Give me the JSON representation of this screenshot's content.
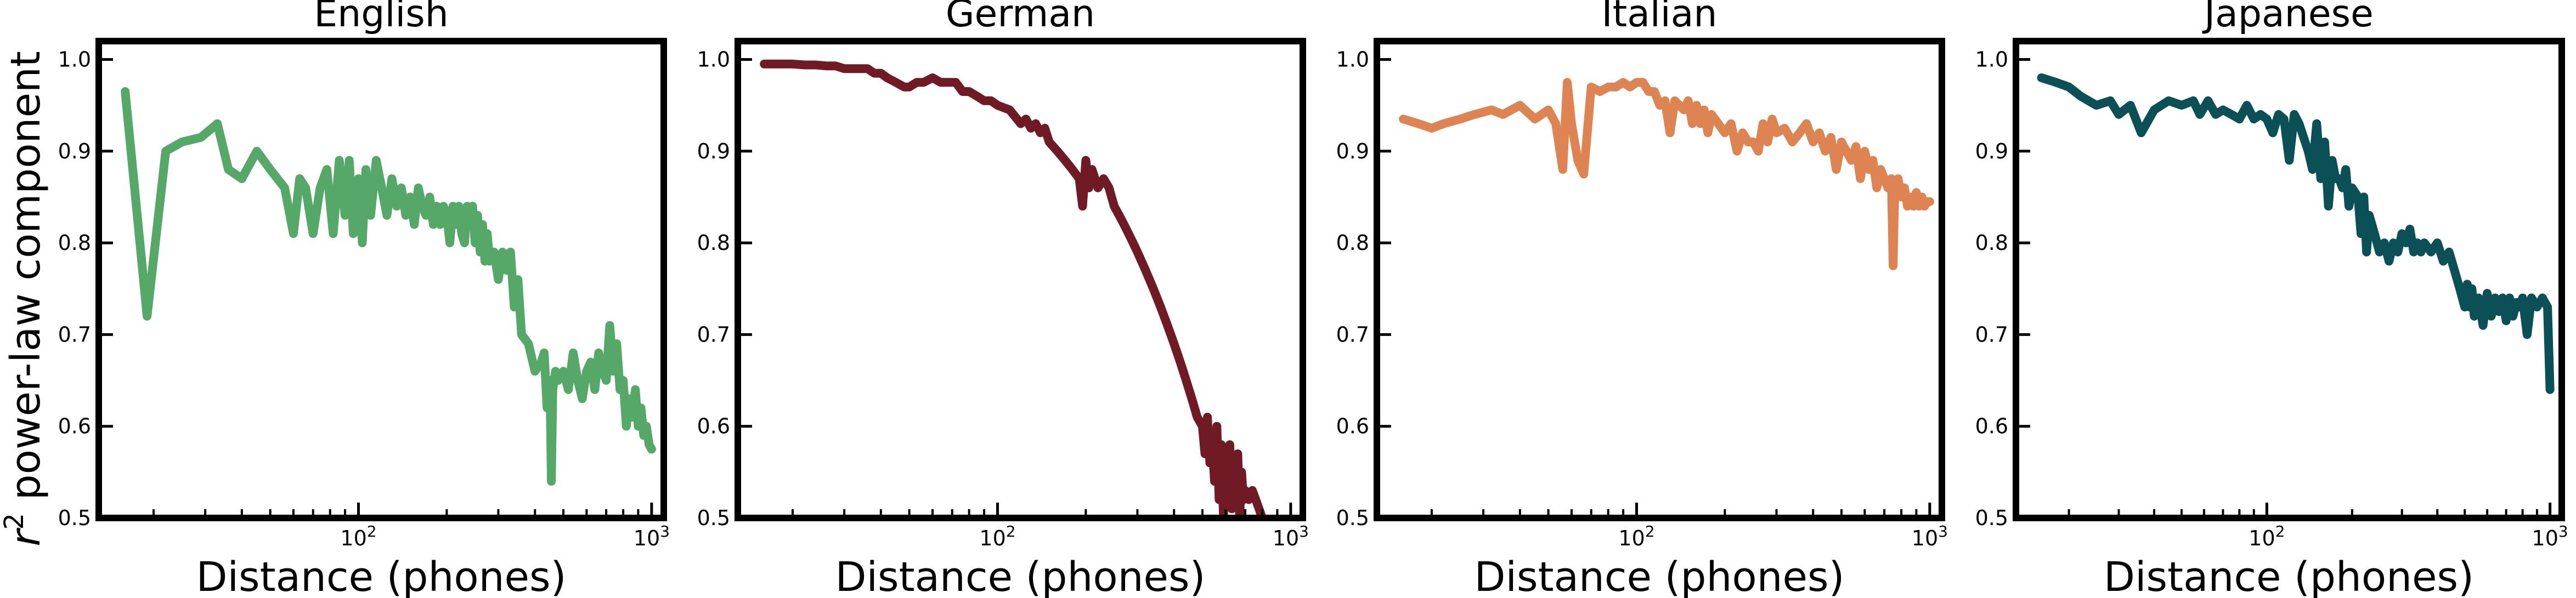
{
  "figure": {
    "ylabel_var": "r",
    "ylabel_exp": "2",
    "ylabel_rest": " power-law component"
  },
  "chart_data": [
    {
      "type": "line",
      "title": "English",
      "xlabel": "Distance (phones)",
      "xscale": "log",
      "xlim": [
        13,
        1100
      ],
      "ylim": [
        0.5,
        1.02
      ],
      "yticks": [
        "0.5",
        "0.6",
        "0.7",
        "0.8",
        "0.9",
        "1.0"
      ],
      "xticks": [
        {
          "base": "10",
          "exp": "2",
          "value": 100
        },
        {
          "base": "10",
          "exp": "3",
          "value": 1000
        }
      ],
      "color": "#55a868",
      "series": [
        {
          "x": [
            16,
            19,
            22,
            25,
            29,
            33,
            36,
            40,
            45,
            50,
            56,
            60,
            63,
            66,
            70,
            74,
            78,
            82,
            86,
            90,
            93,
            96,
            100,
            103,
            106,
            110,
            115,
            120,
            125,
            130,
            135,
            140,
            145,
            150,
            155,
            160,
            165,
            170,
            175,
            180,
            185,
            190,
            195,
            200,
            205,
            210,
            215,
            220,
            225,
            230,
            235,
            240,
            245,
            250,
            255,
            260,
            265,
            270,
            275,
            280,
            290,
            300,
            310,
            320,
            330,
            340,
            350,
            360,
            380,
            400,
            420,
            430,
            440,
            450,
            455,
            460,
            470,
            480,
            500,
            520,
            540,
            560,
            580,
            600,
            620,
            640,
            660,
            680,
            700,
            720,
            740,
            760,
            780,
            800,
            820,
            840,
            860,
            880,
            900,
            920,
            940,
            960,
            980,
            1000
          ],
          "y": [
            0.965,
            0.72,
            0.9,
            0.91,
            0.915,
            0.93,
            0.88,
            0.87,
            0.9,
            0.88,
            0.86,
            0.81,
            0.87,
            0.86,
            0.81,
            0.86,
            0.88,
            0.81,
            0.89,
            0.83,
            0.89,
            0.81,
            0.87,
            0.8,
            0.88,
            0.83,
            0.89,
            0.86,
            0.83,
            0.87,
            0.84,
            0.86,
            0.83,
            0.85,
            0.82,
            0.86,
            0.84,
            0.83,
            0.85,
            0.82,
            0.84,
            0.82,
            0.84,
            0.83,
            0.8,
            0.84,
            0.82,
            0.84,
            0.81,
            0.8,
            0.84,
            0.82,
            0.84,
            0.8,
            0.83,
            0.79,
            0.82,
            0.78,
            0.81,
            0.78,
            0.79,
            0.76,
            0.79,
            0.77,
            0.79,
            0.73,
            0.76,
            0.7,
            0.69,
            0.66,
            0.67,
            0.68,
            0.62,
            0.65,
            0.54,
            0.64,
            0.66,
            0.65,
            0.66,
            0.64,
            0.68,
            0.65,
            0.63,
            0.66,
            0.67,
            0.64,
            0.68,
            0.66,
            0.65,
            0.71,
            0.66,
            0.69,
            0.64,
            0.65,
            0.6,
            0.63,
            0.61,
            0.64,
            0.6,
            0.62,
            0.59,
            0.6,
            0.58,
            0.575
          ]
        }
      ]
    },
    {
      "type": "line",
      "title": "German",
      "xlabel": "Distance (phones)",
      "xscale": "log",
      "xlim": [
        13,
        1100
      ],
      "ylim": [
        0.5,
        1.02
      ],
      "yticks": [
        "0.5",
        "0.6",
        "0.7",
        "0.8",
        "0.9",
        "1.0"
      ],
      "xticks": [
        {
          "base": "10",
          "exp": "2",
          "value": 100
        },
        {
          "base": "10",
          "exp": "3",
          "value": 1000
        }
      ],
      "color": "#6f1a24",
      "series": [
        {
          "x": [
            16,
            18,
            20,
            22,
            24,
            26,
            28,
            30,
            32,
            34,
            36,
            38,
            40,
            42,
            45,
            48,
            50,
            53,
            56,
            60,
            64,
            68,
            72,
            76,
            80,
            85,
            90,
            95,
            100,
            110,
            120,
            125,
            130,
            135,
            140,
            145,
            150,
            160,
            170,
            180,
            190,
            195,
            200,
            205,
            210,
            220,
            230,
            240,
            250,
            260,
            270,
            280,
            290,
            300,
            320,
            340,
            360,
            380,
            400,
            420,
            440,
            460,
            480,
            500,
            510,
            520,
            530,
            540,
            550,
            560,
            570,
            580,
            590,
            600,
            610,
            620,
            630,
            640,
            650,
            660,
            670,
            680,
            690,
            700,
            720,
            740,
            760,
            780,
            800
          ],
          "y": [
            0.995,
            0.995,
            0.995,
            0.994,
            0.994,
            0.993,
            0.993,
            0.99,
            0.99,
            0.99,
            0.99,
            0.985,
            0.985,
            0.98,
            0.975,
            0.97,
            0.97,
            0.975,
            0.975,
            0.98,
            0.975,
            0.975,
            0.975,
            0.965,
            0.965,
            0.96,
            0.955,
            0.955,
            0.95,
            0.945,
            0.93,
            0.935,
            0.925,
            0.93,
            0.92,
            0.925,
            0.91,
            0.9,
            0.89,
            0.88,
            0.87,
            0.84,
            0.89,
            0.86,
            0.88,
            0.86,
            0.87,
            0.86,
            0.84,
            0.83,
            0.82,
            0.81,
            0.8,
            0.79,
            0.77,
            0.75,
            0.73,
            0.71,
            0.69,
            0.67,
            0.65,
            0.63,
            0.61,
            0.6,
            0.57,
            0.61,
            0.56,
            0.58,
            0.54,
            0.6,
            0.52,
            0.58,
            0.5,
            0.57,
            0.53,
            0.58,
            0.51,
            0.56,
            0.53,
            0.57,
            0.5,
            0.55,
            0.52,
            0.53,
            0.52,
            0.53,
            0.52,
            0.51,
            0.5
          ]
        }
      ]
    },
    {
      "type": "line",
      "title": "Italian",
      "xlabel": "Distance (phones)",
      "xscale": "log",
      "xlim": [
        13,
        1100
      ],
      "ylim": [
        0.5,
        1.02
      ],
      "yticks": [
        "0.5",
        "0.6",
        "0.7",
        "0.8",
        "0.9",
        "1.0"
      ],
      "xticks": [
        {
          "base": "10",
          "exp": "2",
          "value": 100
        },
        {
          "base": "10",
          "exp": "3",
          "value": 1000
        }
      ],
      "color": "#dd8452",
      "series": [
        {
          "x": [
            16,
            18,
            20,
            22,
            25,
            28,
            32,
            35,
            40,
            45,
            50,
            53,
            56,
            58,
            60,
            63,
            66,
            70,
            75,
            80,
            85,
            90,
            95,
            100,
            105,
            110,
            115,
            120,
            125,
            130,
            135,
            140,
            145,
            150,
            155,
            160,
            165,
            170,
            175,
            180,
            190,
            200,
            210,
            220,
            230,
            240,
            250,
            260,
            270,
            280,
            290,
            300,
            320,
            340,
            360,
            380,
            400,
            420,
            440,
            460,
            480,
            500,
            520,
            540,
            560,
            580,
            600,
            620,
            640,
            660,
            680,
            700,
            720,
            740,
            750,
            760,
            780,
            800,
            820,
            840,
            860,
            880,
            900,
            920,
            940,
            960,
            980,
            1000
          ],
          "y": [
            0.935,
            0.93,
            0.925,
            0.93,
            0.935,
            0.94,
            0.945,
            0.94,
            0.95,
            0.935,
            0.945,
            0.93,
            0.88,
            0.975,
            0.93,
            0.89,
            0.875,
            0.97,
            0.965,
            0.97,
            0.97,
            0.975,
            0.97,
            0.975,
            0.975,
            0.965,
            0.965,
            0.95,
            0.955,
            0.92,
            0.955,
            0.95,
            0.945,
            0.955,
            0.93,
            0.95,
            0.93,
            0.945,
            0.92,
            0.94,
            0.93,
            0.92,
            0.93,
            0.9,
            0.92,
            0.91,
            0.91,
            0.9,
            0.93,
            0.91,
            0.935,
            0.92,
            0.925,
            0.91,
            0.92,
            0.93,
            0.91,
            0.92,
            0.9,
            0.915,
            0.88,
            0.91,
            0.9,
            0.89,
            0.905,
            0.87,
            0.9,
            0.88,
            0.89,
            0.86,
            0.88,
            0.87,
            0.86,
            0.87,
            0.775,
            0.86,
            0.87,
            0.85,
            0.86,
            0.84,
            0.85,
            0.84,
            0.855,
            0.84,
            0.85,
            0.84,
            0.845,
            0.845
          ]
        }
      ]
    },
    {
      "type": "line",
      "title": "Japanese",
      "xlabel": "Distance (phones)",
      "xscale": "log",
      "xlim": [
        13,
        1100
      ],
      "ylim": [
        0.5,
        1.02
      ],
      "yticks": [
        "0.5",
        "0.6",
        "0.7",
        "0.8",
        "0.9",
        "1.0"
      ],
      "xticks": [
        {
          "base": "10",
          "exp": "2",
          "value": 100
        },
        {
          "base": "10",
          "exp": "3",
          "value": 1000
        }
      ],
      "color": "#0b4f57",
      "series": [
        {
          "x": [
            16,
            18,
            20,
            22,
            25,
            28,
            30,
            33,
            36,
            40,
            45,
            50,
            55,
            58,
            62,
            66,
            70,
            75,
            80,
            85,
            90,
            95,
            100,
            105,
            110,
            115,
            120,
            125,
            130,
            140,
            145,
            150,
            155,
            160,
            165,
            170,
            175,
            180,
            185,
            190,
            195,
            200,
            210,
            215,
            220,
            225,
            230,
            240,
            250,
            260,
            270,
            280,
            290,
            300,
            310,
            320,
            330,
            340,
            350,
            360,
            380,
            400,
            420,
            440,
            460,
            480,
            500,
            510,
            520,
            530,
            540,
            560,
            580,
            600,
            620,
            640,
            660,
            680,
            700,
            720,
            740,
            760,
            780,
            800,
            830,
            860,
            900,
            940,
            980,
            1000
          ],
          "y": [
            0.98,
            0.975,
            0.97,
            0.96,
            0.95,
            0.955,
            0.94,
            0.95,
            0.92,
            0.945,
            0.955,
            0.95,
            0.955,
            0.94,
            0.955,
            0.94,
            0.945,
            0.94,
            0.935,
            0.95,
            0.935,
            0.94,
            0.935,
            0.92,
            0.94,
            0.935,
            0.89,
            0.94,
            0.93,
            0.9,
            0.88,
            0.93,
            0.87,
            0.91,
            0.84,
            0.89,
            0.87,
            0.87,
            0.86,
            0.88,
            0.84,
            0.86,
            0.85,
            0.81,
            0.85,
            0.79,
            0.83,
            0.81,
            0.79,
            0.8,
            0.78,
            0.8,
            0.79,
            0.81,
            0.8,
            0.815,
            0.79,
            0.8,
            0.79,
            0.8,
            0.79,
            0.8,
            0.78,
            0.79,
            0.77,
            0.75,
            0.73,
            0.755,
            0.73,
            0.75,
            0.72,
            0.74,
            0.71,
            0.745,
            0.72,
            0.74,
            0.725,
            0.74,
            0.715,
            0.74,
            0.72,
            0.735,
            0.73,
            0.74,
            0.7,
            0.74,
            0.73,
            0.74,
            0.73,
            0.64
          ]
        }
      ]
    }
  ]
}
